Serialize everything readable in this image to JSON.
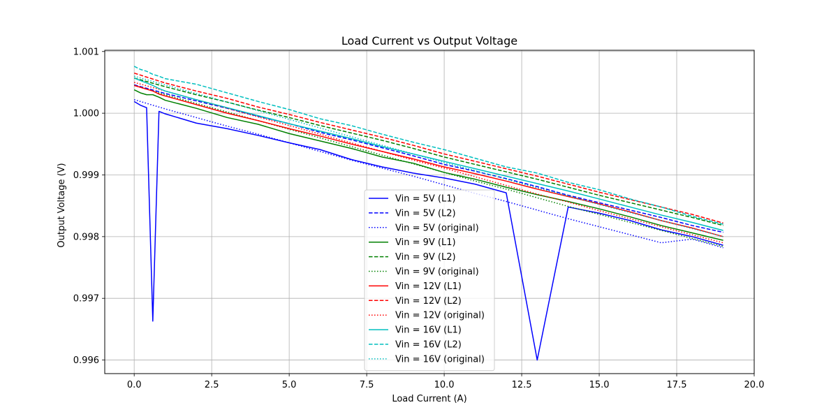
{
  "chart_data": {
    "type": "line",
    "title": "Load Current vs Output Voltage",
    "xlabel": "Load Current (A)",
    "ylabel": "Output Voltage (V)",
    "xlim": [
      -0.95,
      20.0
    ],
    "ylim": [
      0.99578,
      1.00102
    ],
    "xticks": [
      0.0,
      2.5,
      5.0,
      7.5,
      10.0,
      12.5,
      15.0,
      17.5,
      20.0
    ],
    "xtick_labels": [
      "0.0",
      "2.5",
      "5.0",
      "7.5",
      "10.0",
      "12.5",
      "15.0",
      "17.5",
      "20.0"
    ],
    "yticks": [
      0.996,
      0.997,
      0.998,
      0.999,
      1.0,
      1.001
    ],
    "ytick_labels": [
      "0.996",
      "0.997",
      "0.998",
      "0.999",
      "1.000",
      "1.001"
    ],
    "grid": true,
    "legend_position": "lower-center",
    "series": [
      {
        "name": "Vin = 5V (L1)",
        "color": "#0000ff",
        "dash": "solid",
        "x": [
          0,
          0.2,
          0.4,
          0.6,
          0.8,
          1,
          2,
          3,
          4,
          5,
          6,
          7,
          8,
          9,
          10,
          11,
          12,
          13,
          14,
          15,
          16,
          17,
          18,
          19
        ],
        "y": [
          1.00019,
          1.00013,
          1.00009,
          0.99663,
          1.00003,
          0.99999,
          0.99984,
          0.99975,
          0.99964,
          0.99952,
          0.99941,
          0.99925,
          0.99913,
          0.99903,
          0.99895,
          0.99885,
          0.99871,
          0.996,
          0.99848,
          0.99838,
          0.99826,
          0.99811,
          0.998,
          0.99786
        ]
      },
      {
        "name": "Vin = 5V (L2)",
        "color": "#0000ff",
        "dash": "dashed",
        "x": [
          0,
          1,
          2,
          3,
          4,
          5,
          6,
          7,
          8,
          9,
          10,
          11,
          12,
          13,
          14,
          15,
          16,
          17,
          18,
          19
        ],
        "y": [
          1.00046,
          1.00032,
          1.0002,
          1.00008,
          0.99995,
          0.99983,
          0.99969,
          0.99957,
          0.99944,
          0.99931,
          0.99917,
          0.99906,
          0.99894,
          0.99881,
          0.99867,
          0.99855,
          0.99843,
          0.99831,
          0.99818,
          0.99807
        ]
      },
      {
        "name": "Vin = 5V (original)",
        "color": "#0000ff",
        "dash": "dotted",
        "x": [
          0,
          1,
          2,
          3,
          4,
          5,
          6,
          7,
          8,
          9,
          10,
          11,
          12,
          13,
          14,
          15,
          16,
          17,
          18,
          19
        ],
        "y": [
          1.00022,
          1.00007,
          0.99993,
          0.99979,
          0.99966,
          0.99952,
          0.99938,
          0.99924,
          0.99911,
          0.99898,
          0.99884,
          0.9987,
          0.99857,
          0.99843,
          0.99829,
          0.99816,
          0.99803,
          0.9979,
          0.99796,
          0.99782
        ]
      },
      {
        "name": "Vin = 9V (L1)",
        "color": "#008000",
        "dash": "solid",
        "x": [
          0,
          0.2,
          0.4,
          0.6,
          0.8,
          1,
          2,
          3,
          4,
          5,
          6,
          7,
          8,
          9,
          10,
          11,
          12,
          13,
          14,
          15,
          16,
          17,
          18,
          19
        ],
        "y": [
          1.00038,
          1.00033,
          1.0003,
          1.0003,
          1.00026,
          1.00021,
          1.00008,
          0.99993,
          0.99982,
          0.99967,
          0.99955,
          0.99943,
          0.99929,
          0.99919,
          0.99904,
          0.99893,
          0.9988,
          0.99868,
          0.99857,
          0.99845,
          0.99832,
          0.99818,
          0.99806,
          0.99794
        ]
      },
      {
        "name": "Vin = 9V (L2)",
        "color": "#008000",
        "dash": "dashed",
        "x": [
          0,
          1,
          2,
          3,
          4,
          5,
          6,
          7,
          8,
          9,
          10,
          11,
          12,
          13,
          14,
          15,
          16,
          17,
          18,
          19
        ],
        "y": [
          1.00057,
          1.00043,
          1.0003,
          1.00018,
          1.00005,
          0.99993,
          0.9998,
          0.99968,
          0.99956,
          0.99943,
          0.99929,
          0.99917,
          0.99905,
          0.99893,
          0.9988,
          0.99867,
          0.99855,
          0.99843,
          0.99831,
          0.99818
        ]
      },
      {
        "name": "Vin = 9V (original)",
        "color": "#008000",
        "dash": "dotted",
        "x": [
          0,
          1,
          2,
          3,
          4,
          5,
          6,
          7,
          8,
          9,
          10,
          11,
          12,
          13,
          14,
          15,
          16,
          17,
          18,
          19
        ],
        "y": [
          1.00045,
          1.0003,
          1.00016,
          1.00002,
          0.99988,
          0.99974,
          0.9996,
          0.99946,
          0.99932,
          0.99918,
          0.99904,
          0.9989,
          0.99877,
          0.99863,
          0.99849,
          0.99836,
          0.99823,
          0.9981,
          0.99797,
          0.99784
        ]
      },
      {
        "name": "Vin = 12V (L1)",
        "color": "#ff0000",
        "dash": "solid",
        "x": [
          0,
          0.2,
          0.4,
          0.6,
          0.8,
          1,
          2,
          3,
          4,
          5,
          6,
          7,
          8,
          9,
          10,
          11,
          12,
          13,
          14,
          15,
          16,
          17,
          18,
          19
        ],
        "y": [
          1.00045,
          1.00042,
          1.00039,
          1.00036,
          1.00031,
          1.00028,
          1.00014,
          1.0,
          0.99988,
          0.99975,
          0.99963,
          0.9995,
          0.99938,
          0.99926,
          0.99913,
          0.99902,
          0.9989,
          0.99877,
          0.99865,
          0.99853,
          0.9984,
          0.99826,
          0.99814,
          0.998
        ]
      },
      {
        "name": "Vin = 12V (L2)",
        "color": "#ff0000",
        "dash": "dashed",
        "x": [
          0,
          1,
          2,
          3,
          4,
          5,
          6,
          7,
          8,
          9,
          10,
          11,
          12,
          13,
          14,
          15,
          16,
          17,
          18,
          19
        ],
        "y": [
          1.00065,
          1.00049,
          1.00036,
          1.00024,
          1.0001,
          0.99998,
          0.99985,
          0.99973,
          0.99961,
          0.99948,
          0.99934,
          0.99922,
          0.9991,
          0.99898,
          0.99885,
          0.99872,
          0.9986,
          0.99848,
          0.99836,
          0.99822
        ]
      },
      {
        "name": "Vin = 12V (original)",
        "color": "#ff0000",
        "dash": "dotted",
        "x": [
          0,
          1,
          2,
          3,
          4,
          5,
          6,
          7,
          8,
          9,
          10,
          11,
          12,
          13,
          14,
          15,
          16,
          17,
          18,
          19
        ],
        "y": [
          1.0005,
          1.00036,
          1.00022,
          1.00008,
          0.99994,
          0.9998,
          0.99966,
          0.99952,
          0.99938,
          0.99924,
          0.99911,
          0.99897,
          0.99883,
          0.99869,
          0.99856,
          0.99842,
          0.99829,
          0.99816,
          0.99803,
          0.9979
        ]
      },
      {
        "name": "Vin = 16V (L1)",
        "color": "#00bfbf",
        "dash": "solid",
        "x": [
          0,
          0.2,
          0.4,
          0.6,
          0.8,
          1,
          2,
          3,
          4,
          5,
          6,
          7,
          8,
          9,
          10,
          11,
          12,
          13,
          14,
          15,
          16,
          17,
          18,
          19
        ],
        "y": [
          1.00057,
          1.00053,
          1.00049,
          1.00045,
          1.0004,
          1.00036,
          1.00022,
          1.00009,
          0.99996,
          0.99983,
          0.99971,
          0.99959,
          0.99946,
          0.99934,
          0.99922,
          0.9991,
          0.99898,
          0.99886,
          0.99874,
          0.99861,
          0.99848,
          0.99835,
          0.99823,
          0.9981
        ]
      },
      {
        "name": "Vin = 16V (L2)",
        "color": "#00bfbf",
        "dash": "dashed",
        "x": [
          0,
          0.2,
          0.4,
          0.6,
          0.8,
          1,
          2,
          3,
          4,
          5,
          6,
          7,
          8,
          9,
          10,
          11,
          12,
          13,
          14,
          15,
          16,
          17,
          18,
          19
        ],
        "y": [
          1.00076,
          1.00071,
          1.00068,
          1.00063,
          1.0006,
          1.00056,
          1.00047,
          1.00033,
          1.00019,
          1.00006,
          0.99991,
          0.9998,
          0.99966,
          0.99953,
          0.99941,
          0.99927,
          0.99913,
          0.99903,
          0.99888,
          0.99876,
          0.99861,
          0.99848,
          0.99833,
          0.9982
        ]
      },
      {
        "name": "Vin = 16V (original)",
        "color": "#00bfbf",
        "dash": "dotted",
        "x": [
          0,
          1,
          2,
          3,
          4,
          5,
          6,
          7,
          8,
          9,
          10,
          11,
          12,
          13,
          14,
          15,
          16,
          17,
          18,
          19
        ],
        "y": [
          1.0006,
          1.00046,
          1.00032,
          1.00018,
          1.00004,
          0.9999,
          0.99976,
          0.99962,
          0.99948,
          0.99934,
          0.9992,
          0.99907,
          0.99893,
          0.99879,
          0.99866,
          0.99852,
          0.99839,
          0.99826,
          0.99813,
          0.998
        ]
      }
    ]
  }
}
